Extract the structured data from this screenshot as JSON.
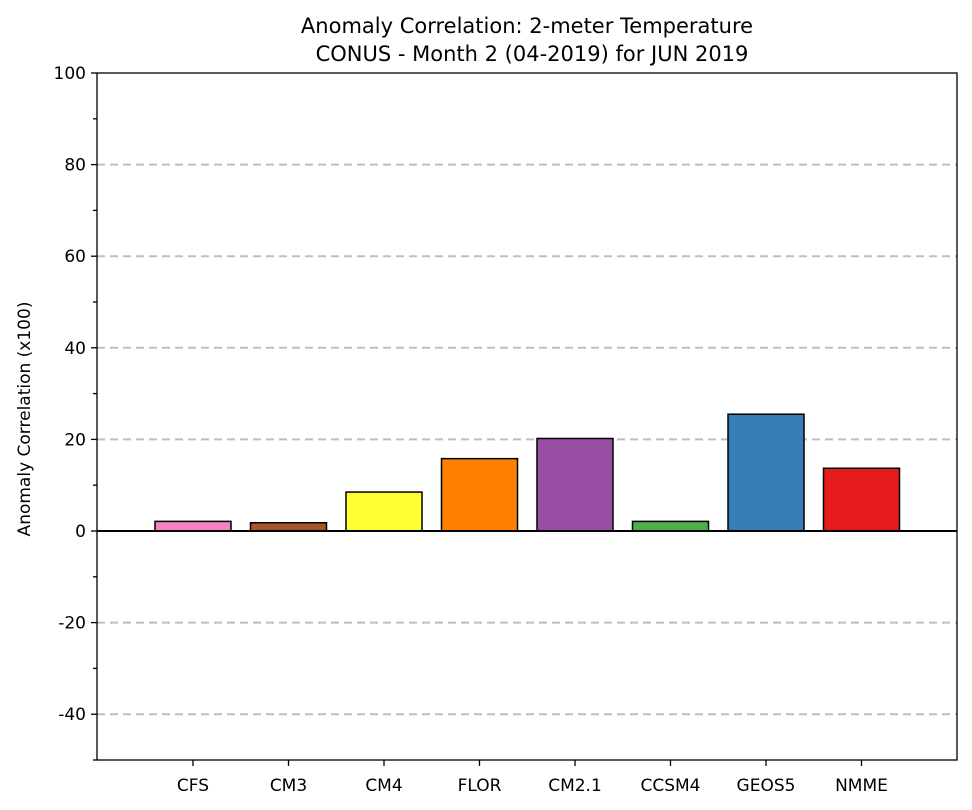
{
  "chart_data": {
    "type": "bar",
    "title": "Anomaly Correlation: 2-meter Temperature",
    "subtitle": "CONUS - Month 2 (04-2019) for JUN 2019",
    "xlabel": "",
    "ylabel": "Anomaly Correlation (x100)",
    "ylim": [
      -50,
      100
    ],
    "yticks": [
      -40,
      -20,
      0,
      20,
      40,
      60,
      80,
      100
    ],
    "ytick_labels": [
      "-40",
      "-20",
      "0",
      "20",
      "40",
      "60",
      "80",
      "100"
    ],
    "minor_yticks": [
      -50,
      -30,
      -10,
      10,
      30,
      50,
      70,
      90
    ],
    "grid": "dashed horizontal at major ticks",
    "categories": [
      "CFS",
      "CM3",
      "CM4",
      "FLOR",
      "CM2.1",
      "CCSM4",
      "GEOS5",
      "NMME"
    ],
    "values": [
      2.1,
      1.8,
      8.5,
      15.8,
      20.2,
      2.1,
      25.5,
      13.7
    ],
    "colors": [
      "#f781bf",
      "#a65628",
      "#ffff33",
      "#ff7f00",
      "#984ea3",
      "#4daf4a",
      "#377eb8",
      "#e41a1c"
    ]
  }
}
